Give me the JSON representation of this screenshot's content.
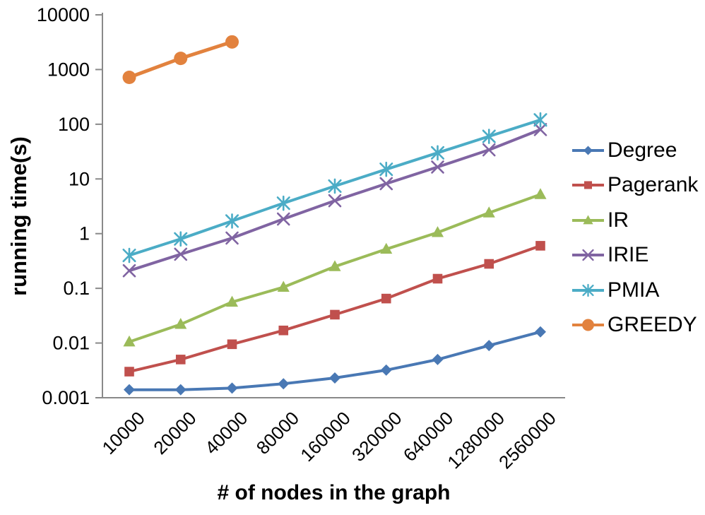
{
  "chart_data": {
    "type": "line",
    "title": "",
    "xlabel": "# of nodes in the graph",
    "ylabel": "running time(s)",
    "x_scale": "categorical",
    "y_scale": "log",
    "ylim": [
      0.001,
      10000
    ],
    "grid": false,
    "legend_position": "right",
    "axis_color": "#898989",
    "y_ticks": [
      10000,
      1000,
      100,
      10,
      1,
      0.1,
      0.01,
      0.001
    ],
    "y_tick_labels": [
      "10000",
      "1000",
      "100",
      "10",
      "1",
      "0.1",
      "0.01",
      "0.001"
    ],
    "categories": [
      "10000",
      "20000",
      "40000",
      "80000",
      "160000",
      "320000",
      "640000",
      "1280000",
      "2560000"
    ],
    "series": [
      {
        "name": "Degree",
        "color": "#4978B4",
        "marker": "diamond",
        "values": [
          0.0014,
          0.0014,
          0.0015,
          0.0018,
          0.0023,
          0.0032,
          0.005,
          0.009,
          0.016
        ]
      },
      {
        "name": "Pagerank",
        "color": "#C0504D",
        "marker": "square",
        "values": [
          0.003,
          0.005,
          0.0095,
          0.017,
          0.033,
          0.065,
          0.15,
          0.28,
          0.6
        ]
      },
      {
        "name": "IR",
        "color": "#9BBB59",
        "marker": "triangle",
        "values": [
          0.0105,
          0.022,
          0.056,
          0.105,
          0.25,
          0.52,
          1.05,
          2.4,
          5.2
        ]
      },
      {
        "name": "IRIE",
        "color": "#8064A2",
        "marker": "x",
        "values": [
          0.21,
          0.42,
          0.83,
          1.85,
          4.0,
          8.2,
          16.5,
          34,
          80
        ]
      },
      {
        "name": "PMIA",
        "color": "#4BACC6",
        "marker": "asterisk",
        "values": [
          0.4,
          0.8,
          1.7,
          3.6,
          7.4,
          15,
          30,
          60,
          120
        ]
      },
      {
        "name": "GREEDY",
        "color": "#E2823E",
        "marker": "circle",
        "values": [
          720,
          1600,
          3200,
          null,
          null,
          null,
          null,
          null,
          null
        ]
      }
    ]
  }
}
